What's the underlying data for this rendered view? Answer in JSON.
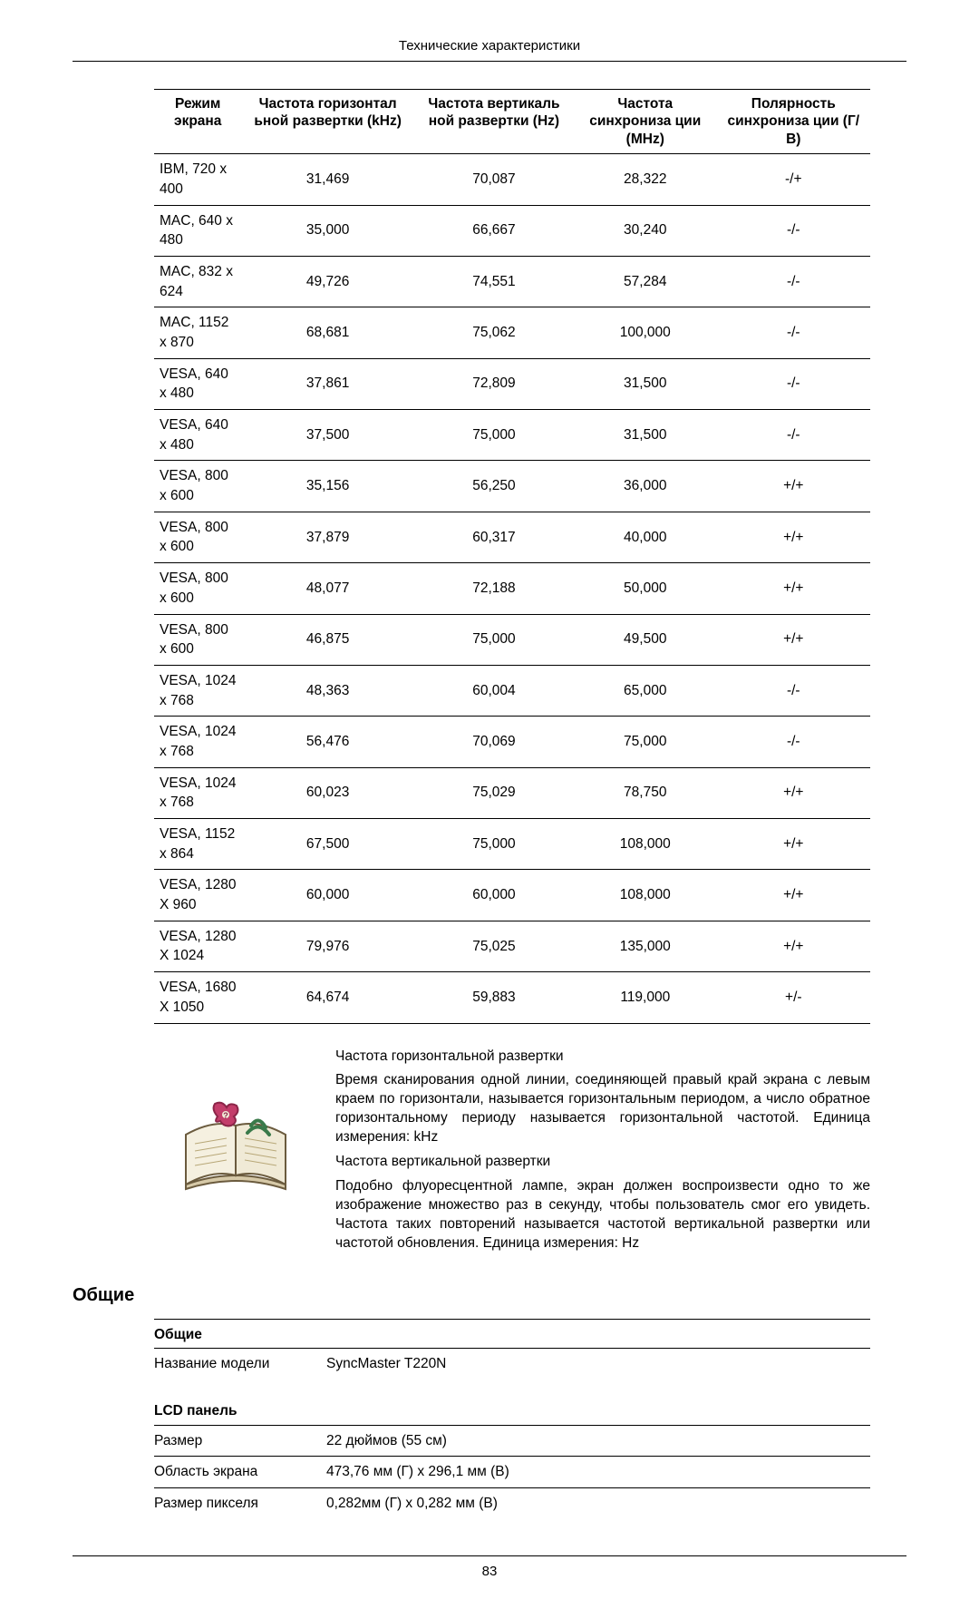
{
  "header": "Технические характеристики",
  "pageNumber": "83",
  "modesTable": {
    "columns": [
      "Режим экрана",
      "Частота горизонтал ьной развертки (kHz)",
      "Частота вертикаль ной развертки (Hz)",
      "Частота синхрониза ции (MHz)",
      "Полярность синхрониза ции (Г/В)"
    ],
    "rows": [
      [
        "IBM, 720 x 400",
        "31,469",
        "70,087",
        "28,322",
        "-/+"
      ],
      [
        "MAC, 640 x 480",
        "35,000",
        "66,667",
        "30,240",
        "-/-"
      ],
      [
        "MAC, 832 x 624",
        "49,726",
        "74,551",
        "57,284",
        "-/-"
      ],
      [
        "MAC, 1152 x 870",
        "68,681",
        "75,062",
        "100,000",
        "-/-"
      ],
      [
        "VESA, 640 x 480",
        "37,861",
        "72,809",
        "31,500",
        "-/-"
      ],
      [
        "VESA, 640 x 480",
        "37,500",
        "75,000",
        "31,500",
        "-/-"
      ],
      [
        "VESA, 800 x 600",
        "35,156",
        "56,250",
        "36,000",
        "+/+"
      ],
      [
        "VESA, 800 x 600",
        "37,879",
        "60,317",
        "40,000",
        "+/+"
      ],
      [
        "VESA, 800 x 600",
        "48,077",
        "72,188",
        "50,000",
        "+/+"
      ],
      [
        "VESA, 800 x 600",
        "46,875",
        "75,000",
        "49,500",
        "+/+"
      ],
      [
        "VESA, 1024 x 768",
        "48,363",
        "60,004",
        "65,000",
        "-/-"
      ],
      [
        "VESA, 1024 x 768",
        "56,476",
        "70,069",
        "75,000",
        "-/-"
      ],
      [
        "VESA, 1024 x 768",
        "60,023",
        "75,029",
        "78,750",
        "+/+"
      ],
      [
        "VESA, 1152 x 864",
        "67,500",
        "75,000",
        "108,000",
        "+/+"
      ],
      [
        "VESA, 1280 X 960",
        "60,000",
        "60,000",
        "108,000",
        "+/+"
      ],
      [
        "VESA, 1280 X 1024",
        "79,976",
        "75,025",
        "135,000",
        "+/+"
      ],
      [
        "VESA, 1680 X 1050",
        "64,674",
        "59,883",
        "119,000",
        "+/-"
      ]
    ]
  },
  "infoBlock": {
    "hFreqTitle": "Частота горизонтальной развертки",
    "hFreqBody": "Время сканирования одной линии, соединяющей правый край экрана с левым краем по горизонтали, называется горизонтальным периодом, а число обратное горизонтальному периоду называется горизонтальной частотой. Единица измерения: kHz",
    "vFreqTitle": "Частота вертикальной развертки",
    "vFreqBody": "Подобно флуоресцентной лампе, экран должен воспроизвести одно то же изображение множество раз в секунду, чтобы пользователь смог его увидеть. Частота таких повторений называется частотой вертикальной развертки или частотой обновления. Единица измерения: Hz"
  },
  "sectionGeneral": "Общие",
  "specs": {
    "generalHead": "Общие",
    "modelLabel": "Название модели",
    "modelValue": "SyncMaster T220N",
    "lcdHead": "LCD панель",
    "sizeLabel": "Размер",
    "sizeValue": "22 дюймов (55 см)",
    "areaLabel": "Область экрана",
    "areaValue": "473,76 мм (Г) x 296,1 мм (В)",
    "pixelLabel": "Размер пикселя",
    "pixelValue": "0,282мм (Г) x 0,282 мм (В)"
  }
}
